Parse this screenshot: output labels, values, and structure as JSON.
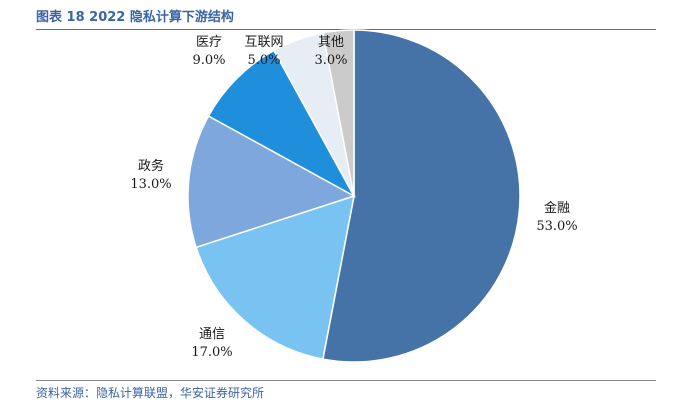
{
  "header": {
    "title": "图表 18 2022 隐私计算下游结构"
  },
  "chart_data": {
    "type": "pie",
    "title": "图表 18 2022 隐私计算下游结构",
    "start_angle_deg": 0,
    "direction": "clockwise",
    "slices": [
      {
        "label": "金融",
        "value": 53.0,
        "value_label": "53.0%",
        "color": "#4572a7"
      },
      {
        "label": "通信",
        "value": 17.0,
        "value_label": "17.0%",
        "color": "#79c3f2"
      },
      {
        "label": "政务",
        "value": 13.0,
        "value_label": "13.0%",
        "color": "#7ea7dd"
      },
      {
        "label": "医疗",
        "value": 9.0,
        "value_label": "9.0%",
        "color": "#1f8fdb"
      },
      {
        "label": "互联网",
        "value": 5.0,
        "value_label": "5.0%",
        "color": "#e6edf4"
      },
      {
        "label": "其他",
        "value": 3.0,
        "value_label": "3.0%",
        "color": "#cbcbcb"
      }
    ]
  },
  "footer": {
    "source": "资料来源：隐私计算联盟，华安证券研究所"
  }
}
